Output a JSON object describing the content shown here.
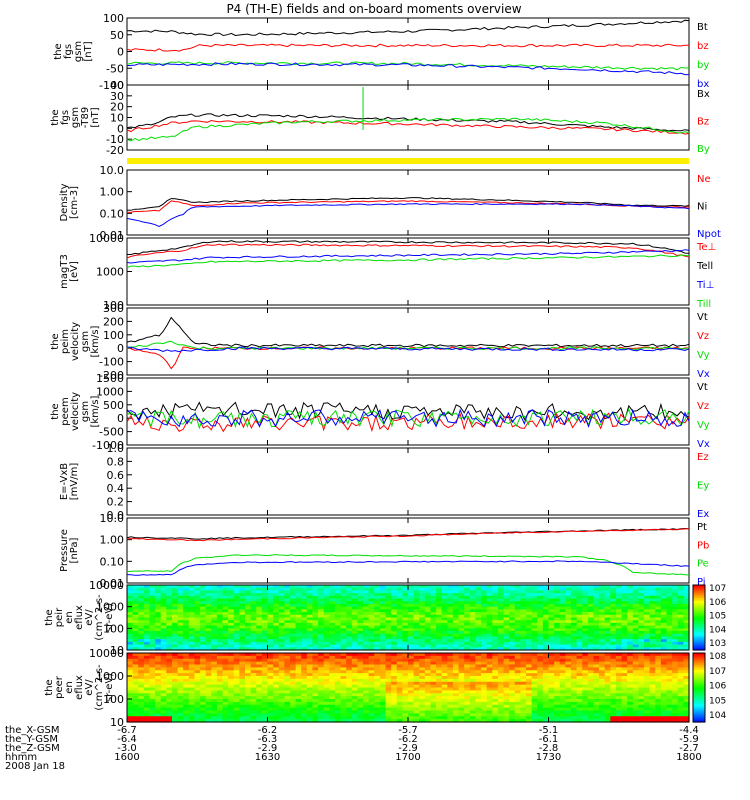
{
  "chart_data": {
    "type": "multi-panel-timeseries",
    "title": "P4 (TH-E) fields and on-board moments overview",
    "date": "2008 Jan 18",
    "x_ticks": [
      "1600",
      "1630",
      "1700",
      "1730",
      "1800"
    ],
    "x_range": [
      "16:00",
      "18:00"
    ],
    "ephemeris": [
      {
        "label": "the_X-GSM",
        "values": [
          "-6.7",
          "-6.2",
          "-5.7",
          "-5.1",
          "-4.4"
        ]
      },
      {
        "label": "the_Y-GSM",
        "values": [
          "-6.4",
          "-6.3",
          "-6.2",
          "-6.1",
          "-5.9"
        ]
      },
      {
        "label": "the_Z-GSM",
        "values": [
          "-3.0",
          "-2.9",
          "-2.9",
          "-2.8",
          "-2.7"
        ]
      },
      {
        "label": "hhmm",
        "values": [
          "1600",
          "1630",
          "1700",
          "1730",
          "1800"
        ]
      }
    ],
    "colors": {
      "black": "#000000",
      "red": "#ff0000",
      "green": "#00dd00",
      "blue": "#0000ff"
    },
    "panels": [
      {
        "ylabel": [
          "the",
          "fgs",
          "gsm",
          "[nT]"
        ],
        "ticks": [
          "100",
          "50",
          "0",
          "-50",
          "-100"
        ],
        "ylim": [
          -100,
          100
        ],
        "scale": "linear",
        "series": [
          {
            "name": "Bt",
            "color": "black",
            "t": [
              0,
              0.08,
              0.12,
              0.2,
              0.5,
              0.8,
              1
            ],
            "v": [
              62,
              60,
              52,
              50,
              60,
              78,
              92
            ]
          },
          {
            "name": "bz",
            "color": "red",
            "t": [
              0,
              0.1,
              0.13,
              0.5,
              1
            ],
            "v": [
              5,
              5,
              18,
              18,
              18
            ]
          },
          {
            "name": "by",
            "color": "green",
            "t": [
              0,
              0.2,
              0.5,
              0.8,
              1
            ],
            "v": [
              -35,
              -34,
              -36,
              -46,
              -52
            ]
          },
          {
            "name": "bx",
            "color": "blue",
            "t": [
              0,
              0.2,
              0.5,
              0.8,
              1
            ],
            "v": [
              -40,
              -37,
              -40,
              -52,
              -66
            ]
          }
        ]
      },
      {
        "ylabel": [
          "the",
          "fgs",
          "gsm",
          "-T89",
          "[nT]"
        ],
        "ticks": [
          "40",
          "30",
          "20",
          "10",
          "0",
          "-10",
          "-20"
        ],
        "ylim": [
          -25,
          40
        ],
        "scale": "linear",
        "series": [
          {
            "name": "Bx",
            "color": "black",
            "t": [
              0,
              0.05,
              0.08,
              0.12,
              0.3,
              0.5,
              0.7,
              0.85,
              1
            ],
            "v": [
              -3,
              1,
              8,
              10,
              9,
              6,
              3,
              -2,
              -6
            ]
          },
          {
            "name": "Bz",
            "color": "red",
            "t": [
              0,
              0.08,
              0.12,
              0.3,
              0.5,
              0.7,
              0.85,
              1
            ],
            "v": [
              -6,
              2,
              4,
              3,
              1,
              -2,
              -4,
              -8
            ]
          },
          {
            "name": "By",
            "color": "green",
            "t": [
              0,
              0.08,
              0.12,
              0.3,
              0.5,
              0.7,
              0.85,
              1
            ],
            "v": [
              -15,
              -12,
              -2,
              3,
              5,
              6,
              2,
              -8
            ]
          }
        ]
      },
      {
        "ylabel": [
          "Density",
          "[cm-3]"
        ],
        "ticks": [
          "10.0",
          "1.00",
          "0.10",
          "0.01"
        ],
        "ylim": [
          0.008,
          11
        ],
        "scale": "log",
        "series": [
          {
            "name": "Ne",
            "color": "red",
            "t": [
              0,
              0.06,
              0.08,
              0.12,
              0.2,
              0.5,
              0.8,
              0.9,
              1
            ],
            "v": [
              0.1,
              0.12,
              0.35,
              0.2,
              0.28,
              0.35,
              0.25,
              0.2,
              0.18
            ]
          },
          {
            "name": "Ni",
            "color": "black",
            "t": [
              0,
              0.06,
              0.08,
              0.12,
              0.2,
              0.5,
              0.8,
              0.9,
              1
            ],
            "v": [
              0.12,
              0.2,
              0.45,
              0.3,
              0.35,
              0.5,
              0.3,
              0.22,
              0.2
            ]
          },
          {
            "name": "Npot",
            "color": "blue",
            "t": [
              0,
              0.06,
              0.1,
              0.12,
              0.3,
              0.5,
              0.8,
              0.9,
              1
            ],
            "v": [
              0.05,
              0.02,
              0.08,
              0.18,
              0.22,
              0.25,
              0.25,
              0.2,
              0.15
            ]
          }
        ]
      },
      {
        "ylabel": [
          "magT3",
          "[eV]"
        ],
        "ticks": [
          "10000",
          "1000",
          "100"
        ],
        "ylim": [
          100,
          12000
        ],
        "scale": "log",
        "series": [
          {
            "name": "Te⊥",
            "color": "red",
            "t": [
              0,
              0.1,
              0.15,
              0.5,
              0.8,
              0.9,
              1
            ],
            "v": [
              3000,
              5000,
              7500,
              7000,
              6500,
              6000,
              3000
            ]
          },
          {
            "name": "Tell",
            "color": "black",
            "t": [
              0,
              0.1,
              0.15,
              0.5,
              0.8,
              0.9,
              1
            ],
            "v": [
              3500,
              6000,
              9500,
              9000,
              8500,
              8000,
              4000
            ]
          },
          {
            "name": "Ti⊥",
            "color": "blue",
            "t": [
              0,
              0.1,
              0.15,
              0.5,
              0.8,
              0.9,
              1
            ],
            "v": [
              2000,
              2500,
              3000,
              3500,
              4000,
              4500,
              5000
            ]
          },
          {
            "name": "Till",
            "color": "green",
            "t": [
              0,
              0.1,
              0.15,
              0.5,
              0.8,
              0.9,
              1
            ],
            "v": [
              1500,
              1800,
              2200,
              2500,
              3000,
              3200,
              3500
            ]
          }
        ]
      },
      {
        "ylabel": [
          "the",
          "peim",
          "velocity",
          "gsm",
          "[km/s]"
        ],
        "ticks": [
          "300",
          "200",
          "100",
          "0",
          "-100",
          "-200"
        ],
        "ylim": [
          -200,
          300
        ],
        "scale": "linear",
        "series": [
          {
            "name": "Vt",
            "color": "black",
            "t": [
              0,
              0.06,
              0.08,
              0.12,
              0.2,
              1
            ],
            "v": [
              40,
              100,
              230,
              30,
              20,
              20
            ]
          },
          {
            "name": "Vz",
            "color": "red",
            "t": [
              0,
              0.06,
              0.08,
              0.1,
              0.2,
              1
            ],
            "v": [
              0,
              -50,
              -150,
              0,
              0,
              0
            ]
          },
          {
            "name": "Vy",
            "color": "green",
            "t": [
              0,
              0.08,
              0.12,
              0.2,
              1
            ],
            "v": [
              0,
              50,
              0,
              0,
              0
            ]
          },
          {
            "name": "Vx",
            "color": "blue",
            "t": [
              0,
              0.08,
              0.2,
              0.9,
              1
            ],
            "v": [
              0,
              -20,
              0,
              -10,
              -10
            ]
          }
        ]
      },
      {
        "ylabel": [
          "the",
          "peem",
          "velocity",
          "gsm",
          "[km/s]"
        ],
        "ticks": [
          "1500",
          "1000",
          "500",
          "0",
          "-500",
          "-1000"
        ],
        "ylim": [
          -1000,
          1500
        ],
        "scale": "linear",
        "series": [
          {
            "name": "Vt",
            "color": "black",
            "t": [
              0,
              0.1,
              1
            ],
            "v": [
              200,
              300,
              200
            ]
          },
          {
            "name": "Vz",
            "color": "red",
            "t": [
              0,
              0.1,
              1
            ],
            "v": [
              -100,
              -200,
              -100
            ]
          },
          {
            "name": "Vy",
            "color": "green",
            "t": [
              0,
              0.1,
              1
            ],
            "v": [
              50,
              -50,
              50
            ]
          },
          {
            "name": "Vx",
            "color": "blue",
            "t": [
              0,
              1
            ],
            "v": [
              0,
              0
            ]
          }
        ]
      },
      {
        "ylabel": [
          "E=-VxB",
          "[mV/m]"
        ],
        "ticks": [
          "1.0",
          "0.8",
          "0.6",
          "0.4",
          "0.2",
          "0.0"
        ],
        "ylim": [
          0,
          1
        ],
        "scale": "linear",
        "series": [
          {
            "name": "Ez",
            "color": "red",
            "t": [],
            "v": []
          },
          {
            "name": "Ey",
            "color": "green",
            "t": [],
            "v": []
          },
          {
            "name": "Ex",
            "color": "blue",
            "t": [],
            "v": []
          }
        ]
      },
      {
        "ylabel": [
          "Pressure",
          "[nPa]"
        ],
        "ticks": [
          "10.0",
          "1.00",
          "0.10",
          "0.01"
        ],
        "ylim": [
          0.008,
          11
        ],
        "scale": "log",
        "series": [
          {
            "name": "Pt",
            "color": "black",
            "t": [
              0,
              0.08,
              0.12,
              0.5,
              0.8,
              1
            ],
            "v": [
              1.3,
              1.2,
              1.1,
              1.6,
              2.6,
              3.3
            ]
          },
          {
            "name": "Pb",
            "color": "red",
            "t": [
              0,
              0.08,
              0.12,
              0.5,
              0.8,
              1
            ],
            "v": [
              1.1,
              1.0,
              0.9,
              1.5,
              2.5,
              3.2
            ]
          },
          {
            "name": "Pe",
            "color": "green",
            "t": [
              0,
              0.08,
              0.12,
              0.2,
              0.8,
              0.85,
              0.9,
              1
            ],
            "v": [
              0.03,
              0.03,
              0.12,
              0.18,
              0.15,
              0.1,
              0.025,
              0.02
            ]
          },
          {
            "name": "Pi",
            "color": "blue",
            "t": [
              0,
              0.08,
              0.12,
              0.2,
              0.8,
              0.9,
              1
            ],
            "v": [
              0.02,
              0.02,
              0.06,
              0.08,
              0.09,
              0.07,
              0.05
            ]
          }
        ]
      },
      {
        "ylabel": [
          "the",
          "peir",
          "en",
          "eflux",
          "eV/",
          "(cm^2-s-",
          "sr-eV)"
        ],
        "ticks": [
          "10000",
          "1000",
          "100",
          "10"
        ],
        "ylim": [
          8,
          20000
        ],
        "scale": "log",
        "colorbar_ticks": [
          "10^7",
          "10^6",
          "10^5",
          "10^4",
          "10^3"
        ],
        "spectrogram": "ion energy flux"
      },
      {
        "ylabel": [
          "the",
          "peer",
          "en",
          "eflux",
          "eV/",
          "(cm^2-s-",
          "sr-eV)"
        ],
        "ticks": [
          "10000",
          "1000",
          "100",
          "10"
        ],
        "ylim": [
          8,
          20000
        ],
        "scale": "log",
        "colorbar_ticks": [
          "10^8",
          "10^7",
          "10^6",
          "10^5",
          "10^4"
        ],
        "spectrogram": "electron energy flux"
      }
    ]
  }
}
